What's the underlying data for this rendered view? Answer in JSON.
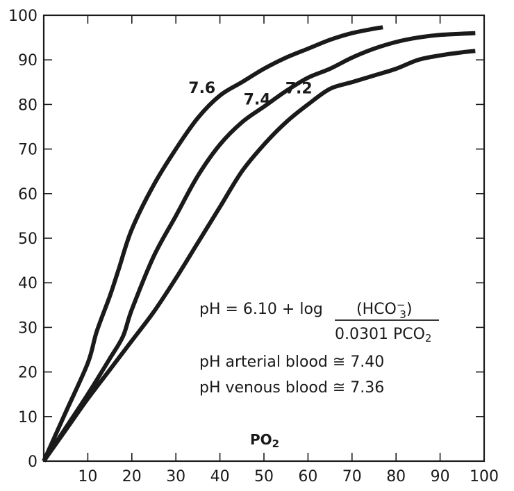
{
  "chart_data": {
    "type": "line",
    "xlabel": "PO",
    "xlabel_sub": "2",
    "ylabel": "",
    "xlim": [
      0,
      100
    ],
    "ylim": [
      0,
      100
    ],
    "x_ticks": [
      10,
      20,
      30,
      40,
      50,
      60,
      70,
      80,
      90,
      100
    ],
    "y_ticks": [
      0,
      10,
      20,
      30,
      40,
      50,
      60,
      70,
      80,
      90,
      100
    ],
    "grid": false,
    "series": [
      {
        "name": "7.6",
        "x": [
          0,
          5,
          10,
          12,
          15,
          17,
          20,
          25,
          30,
          35,
          40,
          45,
          50,
          55,
          60,
          65,
          70,
          75,
          77
        ],
        "y": [
          0,
          11,
          22,
          29,
          37,
          43,
          52,
          62,
          70,
          77,
          82,
          85,
          88,
          90.5,
          92.5,
          94.5,
          96,
          97,
          97.3
        ]
      },
      {
        "name": "7.4",
        "x": [
          0,
          5,
          10,
          15,
          18,
          20,
          25,
          30,
          35,
          40,
          45,
          50,
          55,
          60,
          65,
          70,
          75,
          80,
          85,
          90,
          98
        ],
        "y": [
          0,
          7.5,
          15,
          23,
          28,
          34,
          46,
          55,
          64,
          71,
          76,
          79.5,
          83,
          86,
          88,
          90.5,
          92.5,
          94,
          95,
          95.6,
          96
        ]
      },
      {
        "name": "7.2",
        "x": [
          0,
          5,
          10,
          15,
          20,
          25,
          30,
          35,
          40,
          45,
          50,
          55,
          60,
          65,
          70,
          75,
          80,
          85,
          90,
          95,
          98
        ],
        "y": [
          0,
          7,
          14,
          20.5,
          27,
          33.5,
          41,
          49,
          57,
          65,
          71,
          76,
          80,
          83.5,
          85,
          86.5,
          88,
          90,
          91,
          91.7,
          92
        ]
      }
    ],
    "annotations": {
      "equation_lhs": "pH = 6.10 + log",
      "numerator": "(HCO",
      "numerator_sub": "3",
      "numerator_sup": "−",
      "numerator_close": ")",
      "denominator": "0.0301 PCO",
      "denominator_sub": "2",
      "arterial": "pH arterial blood ≅ 7.40",
      "venous": "pH venous blood ≅ 7.36"
    }
  }
}
